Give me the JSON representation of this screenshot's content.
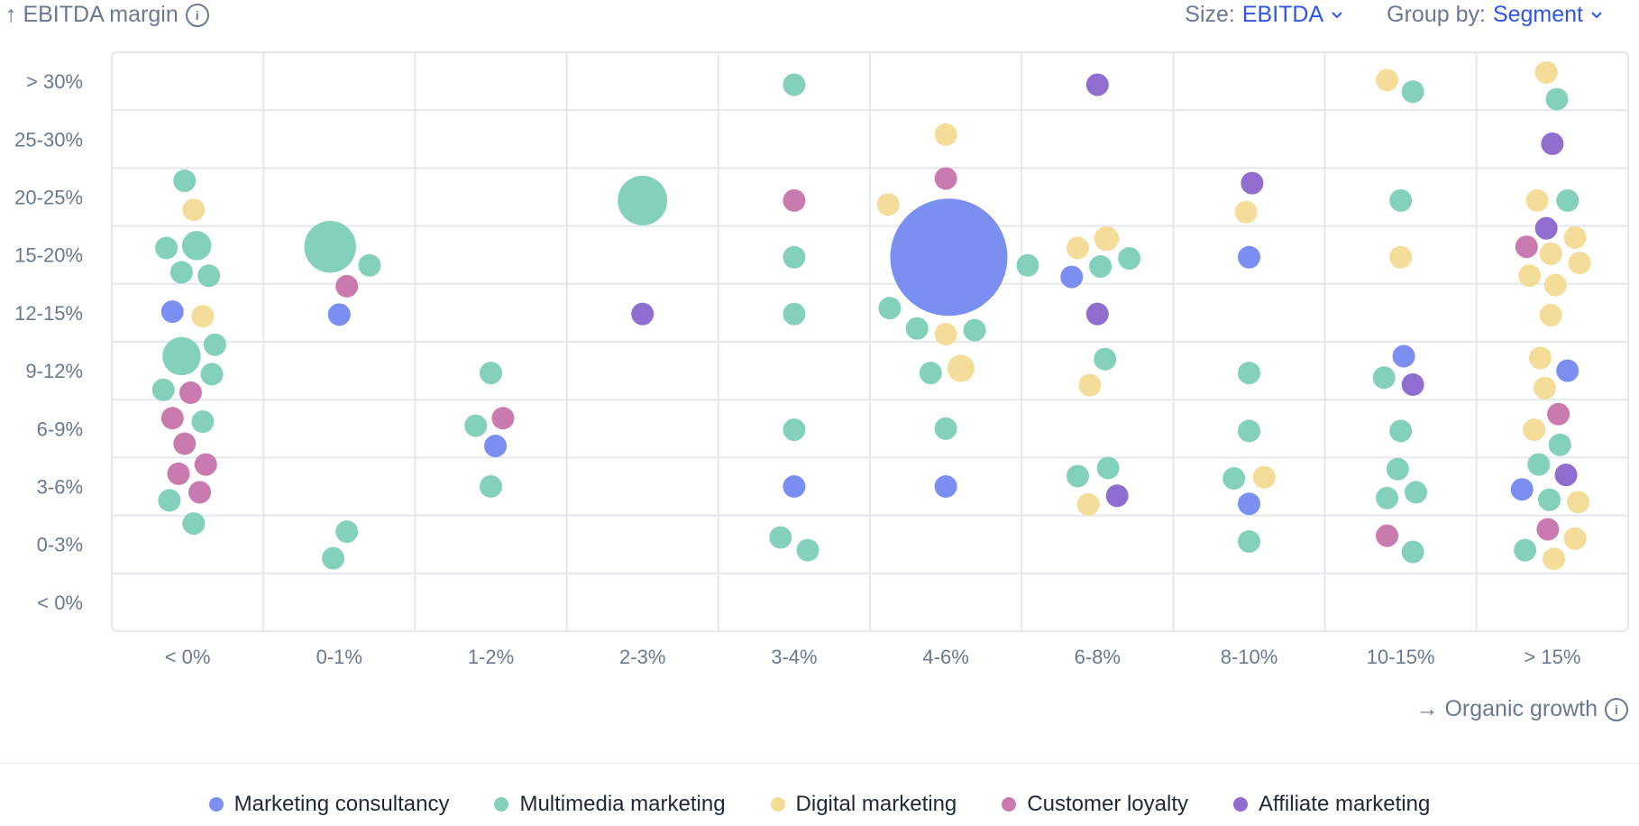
{
  "header": {
    "y_axis_title": "↑ EBITDA margin",
    "size_label": "Size:",
    "size_value": "EBITDA",
    "group_label": "Group by:",
    "group_value": "Segment"
  },
  "footer": {
    "x_axis_title": "→ Organic growth"
  },
  "colors": {
    "Marketing consultancy": "#7b8ff2",
    "Multimedia marketing": "#83d1ba",
    "Digital marketing": "#f4dc99",
    "Customer loyalty": "#c97bb0",
    "Affiliate marketing": "#8f6ed0",
    "accent": "#2f54eb"
  },
  "legend": [
    {
      "label": "Marketing consultancy",
      "color": "#7b8ff2"
    },
    {
      "label": "Multimedia marketing",
      "color": "#83d1ba"
    },
    {
      "label": "Digital marketing",
      "color": "#f4dc99"
    },
    {
      "label": "Customer loyalty",
      "color": "#c97bb0"
    },
    {
      "label": "Affiliate marketing",
      "color": "#8f6ed0"
    }
  ],
  "chart_data": {
    "type": "scatter",
    "title": "",
    "xlabel": "Organic growth",
    "ylabel": "EBITDA margin",
    "x_categories": [
      "< 0%",
      "0-1%",
      "1-2%",
      "2-3%",
      "3-4%",
      "4-6%",
      "6-8%",
      "8-10%",
      "10-15%",
      "> 15%"
    ],
    "y_categories": [
      "< 0%",
      "0-3%",
      "3-6%",
      "6-9%",
      "9-12%",
      "12-15%",
      "15-20%",
      "20-25%",
      "25-30%",
      "> 30%"
    ],
    "size_encodes": "EBITDA",
    "points": [
      {
        "s": "Multimedia marketing",
        "x": 0,
        "y": 7,
        "dx": -0.02,
        "dy": 0.28,
        "r": 1
      },
      {
        "s": "Digital marketing",
        "x": 0,
        "y": 7,
        "dx": 0.04,
        "dy": -0.22,
        "r": 1
      },
      {
        "s": "Multimedia marketing",
        "x": 0,
        "y": 6,
        "dx": -0.14,
        "dy": 0.12,
        "r": 1
      },
      {
        "s": "Multimedia marketing",
        "x": 0,
        "y": 6,
        "dx": 0.06,
        "dy": 0.16,
        "r": 1.3
      },
      {
        "s": "Multimedia marketing",
        "x": 0,
        "y": 6,
        "dx": -0.04,
        "dy": -0.3,
        "r": 1
      },
      {
        "s": "Multimedia marketing",
        "x": 0,
        "y": 6,
        "dx": 0.14,
        "dy": -0.36,
        "r": 1
      },
      {
        "s": "Marketing consultancy",
        "x": 0,
        "y": 5,
        "dx": -0.1,
        "dy": 0.02,
        "r": 1
      },
      {
        "s": "Digital marketing",
        "x": 0,
        "y": 5,
        "dx": 0.1,
        "dy": -0.06,
        "r": 1
      },
      {
        "s": "Multimedia marketing",
        "x": 0,
        "y": 5,
        "dx": 0.18,
        "dy": -0.55,
        "r": 1
      },
      {
        "s": "Multimedia marketing",
        "x": 0,
        "y": 4,
        "dx": -0.04,
        "dy": 0.25,
        "r": 1.7
      },
      {
        "s": "Multimedia marketing",
        "x": 0,
        "y": 4,
        "dx": 0.16,
        "dy": -0.06,
        "r": 1
      },
      {
        "s": "Multimedia marketing",
        "x": 0,
        "y": 4,
        "dx": -0.16,
        "dy": -0.33,
        "r": 1
      },
      {
        "s": "Customer loyalty",
        "x": 0,
        "y": 4,
        "dx": 0.02,
        "dy": -0.38,
        "r": 1
      },
      {
        "s": "Customer loyalty",
        "x": 0,
        "y": 3,
        "dx": -0.1,
        "dy": 0.18,
        "r": 1
      },
      {
        "s": "Multimedia marketing",
        "x": 0,
        "y": 3,
        "dx": 0.1,
        "dy": 0.12,
        "r": 1
      },
      {
        "s": "Customer loyalty",
        "x": 0,
        "y": 3,
        "dx": -0.02,
        "dy": -0.26,
        "r": 1
      },
      {
        "s": "Customer loyalty",
        "x": 0,
        "y": 2,
        "dx": 0.12,
        "dy": 0.38,
        "r": 1
      },
      {
        "s": "Customer loyalty",
        "x": 0,
        "y": 2,
        "dx": -0.06,
        "dy": 0.22,
        "r": 1
      },
      {
        "s": "Customer loyalty",
        "x": 0,
        "y": 2,
        "dx": 0.08,
        "dy": -0.1,
        "r": 1
      },
      {
        "s": "Multimedia marketing",
        "x": 0,
        "y": 2,
        "dx": -0.12,
        "dy": -0.24,
        "r": 1
      },
      {
        "s": "Multimedia marketing",
        "x": 0,
        "y": 1,
        "dx": 0.04,
        "dy": 0.36,
        "r": 1
      },
      {
        "s": "Multimedia marketing",
        "x": 1,
        "y": 6,
        "dx": -0.06,
        "dy": 0.14,
        "r": 2.3
      },
      {
        "s": "Multimedia marketing",
        "x": 1,
        "y": 6,
        "dx": 0.2,
        "dy": -0.18,
        "r": 1
      },
      {
        "s": "Customer loyalty",
        "x": 1,
        "y": 6,
        "dx": 0.05,
        "dy": -0.54,
        "r": 1
      },
      {
        "s": "Marketing consultancy",
        "x": 1,
        "y": 5,
        "dx": 0.0,
        "dy": -0.03,
        "r": 1
      },
      {
        "s": "Multimedia marketing",
        "x": 1,
        "y": 1,
        "dx": 0.05,
        "dy": 0.22,
        "r": 1
      },
      {
        "s": "Multimedia marketing",
        "x": 1,
        "y": 1,
        "dx": -0.04,
        "dy": -0.24,
        "r": 1
      },
      {
        "s": "Multimedia marketing",
        "x": 2,
        "y": 4,
        "dx": 0.0,
        "dy": -0.04,
        "r": 1
      },
      {
        "s": "Multimedia marketing",
        "x": 2,
        "y": 3,
        "dx": -0.1,
        "dy": 0.05,
        "r": 1
      },
      {
        "s": "Customer loyalty",
        "x": 2,
        "y": 3,
        "dx": 0.08,
        "dy": 0.18,
        "r": 1
      },
      {
        "s": "Marketing consultancy",
        "x": 2,
        "y": 3,
        "dx": 0.03,
        "dy": -0.3,
        "r": 1
      },
      {
        "s": "Multimedia marketing",
        "x": 2,
        "y": 2,
        "dx": 0.0,
        "dy": 0.0,
        "r": 1
      },
      {
        "s": "Multimedia marketing",
        "x": 3,
        "y": 7,
        "dx": 0.0,
        "dy": -0.06,
        "r": 2.2
      },
      {
        "s": "Affiliate marketing",
        "x": 3,
        "y": 5,
        "dx": 0.0,
        "dy": -0.02,
        "r": 1
      },
      {
        "s": "Multimedia marketing",
        "x": 4,
        "y": 9,
        "dx": 0.0,
        "dy": -0.06,
        "r": 1
      },
      {
        "s": "Customer loyalty",
        "x": 4,
        "y": 7,
        "dx": 0.0,
        "dy": -0.06,
        "r": 1
      },
      {
        "s": "Multimedia marketing",
        "x": 4,
        "y": 6,
        "dx": 0.0,
        "dy": -0.04,
        "r": 1
      },
      {
        "s": "Multimedia marketing",
        "x": 4,
        "y": 5,
        "dx": 0.0,
        "dy": -0.02,
        "r": 1
      },
      {
        "s": "Multimedia marketing",
        "x": 4,
        "y": 3,
        "dx": 0.0,
        "dy": -0.02,
        "r": 1
      },
      {
        "s": "Marketing consultancy",
        "x": 4,
        "y": 2,
        "dx": 0.0,
        "dy": 0.0,
        "r": 1
      },
      {
        "s": "Multimedia marketing",
        "x": 4,
        "y": 1,
        "dx": -0.09,
        "dy": 0.12,
        "r": 1
      },
      {
        "s": "Multimedia marketing",
        "x": 4,
        "y": 1,
        "dx": 0.09,
        "dy": -0.1,
        "r": 1
      },
      {
        "s": "Digital marketing",
        "x": 5,
        "y": 8,
        "dx": 0.0,
        "dy": 0.08,
        "r": 1
      },
      {
        "s": "Customer loyalty",
        "x": 5,
        "y": 7,
        "dx": 0.0,
        "dy": 0.32,
        "r": 1
      },
      {
        "s": "Digital marketing",
        "x": 5,
        "y": 7,
        "dx": -0.38,
        "dy": -0.13,
        "r": 1
      },
      {
        "s": "Marketing consultancy",
        "x": 5,
        "y": 6,
        "dx": 0.02,
        "dy": -0.04,
        "r": 5.2
      },
      {
        "s": "Multimedia marketing",
        "x": 5,
        "y": 6,
        "dx": 0.54,
        "dy": -0.18,
        "r": 1
      },
      {
        "s": "Multimedia marketing",
        "x": 5,
        "y": 5,
        "dx": -0.37,
        "dy": 0.08,
        "r": 1
      },
      {
        "s": "Multimedia marketing",
        "x": 5,
        "y": 5,
        "dx": -0.19,
        "dy": -0.27,
        "r": 1
      },
      {
        "s": "Digital marketing",
        "x": 5,
        "y": 5,
        "dx": 0.0,
        "dy": -0.37,
        "r": 1
      },
      {
        "s": "Multimedia marketing",
        "x": 5,
        "y": 5,
        "dx": 0.19,
        "dy": -0.3,
        "r": 1
      },
      {
        "s": "Digital marketing",
        "x": 5,
        "y": 4,
        "dx": 0.1,
        "dy": 0.04,
        "r": 1.2
      },
      {
        "s": "Multimedia marketing",
        "x": 5,
        "y": 4,
        "dx": -0.1,
        "dy": -0.04,
        "r": 1
      },
      {
        "s": "Multimedia marketing",
        "x": 5,
        "y": 3,
        "dx": 0.0,
        "dy": 0.0,
        "r": 1
      },
      {
        "s": "Marketing consultancy",
        "x": 5,
        "y": 2,
        "dx": 0.0,
        "dy": 0.0,
        "r": 1
      },
      {
        "s": "Affiliate marketing",
        "x": 6,
        "y": 9,
        "dx": 0.0,
        "dy": -0.06,
        "r": 1
      },
      {
        "s": "Digital marketing",
        "x": 6,
        "y": 6,
        "dx": -0.13,
        "dy": 0.12,
        "r": 1
      },
      {
        "s": "Digital marketing",
        "x": 6,
        "y": 6,
        "dx": 0.06,
        "dy": 0.28,
        "r": 1.1
      },
      {
        "s": "Multimedia marketing",
        "x": 6,
        "y": 6,
        "dx": 0.02,
        "dy": -0.2,
        "r": 1
      },
      {
        "s": "Multimedia marketing",
        "x": 6,
        "y": 6,
        "dx": 0.21,
        "dy": -0.06,
        "r": 1
      },
      {
        "s": "Marketing consultancy",
        "x": 6,
        "y": 6,
        "dx": -0.17,
        "dy": -0.38,
        "r": 1
      },
      {
        "s": "Affiliate marketing",
        "x": 6,
        "y": 5,
        "dx": 0.0,
        "dy": -0.02,
        "r": 1
      },
      {
        "s": "Multimedia marketing",
        "x": 6,
        "y": 4,
        "dx": 0.05,
        "dy": 0.2,
        "r": 1
      },
      {
        "s": "Digital marketing",
        "x": 6,
        "y": 4,
        "dx": -0.05,
        "dy": -0.25,
        "r": 1
      },
      {
        "s": "Multimedia marketing",
        "x": 6,
        "y": 2,
        "dx": 0.07,
        "dy": 0.32,
        "r": 1
      },
      {
        "s": "Multimedia marketing",
        "x": 6,
        "y": 2,
        "dx": -0.13,
        "dy": 0.18,
        "r": 1
      },
      {
        "s": "Affiliate marketing",
        "x": 6,
        "y": 2,
        "dx": 0.13,
        "dy": -0.16,
        "r": 1
      },
      {
        "s": "Digital marketing",
        "x": 6,
        "y": 2,
        "dx": -0.06,
        "dy": -0.31,
        "r": 1
      },
      {
        "s": "Affiliate marketing",
        "x": 7,
        "y": 7,
        "dx": 0.02,
        "dy": 0.24,
        "r": 1
      },
      {
        "s": "Digital marketing",
        "x": 7,
        "y": 7,
        "dx": -0.02,
        "dy": -0.26,
        "r": 1
      },
      {
        "s": "Marketing consultancy",
        "x": 7,
        "y": 6,
        "dx": 0.0,
        "dy": -0.04,
        "r": 1
      },
      {
        "s": "Multimedia marketing",
        "x": 7,
        "y": 4,
        "dx": 0.0,
        "dy": -0.04,
        "r": 1
      },
      {
        "s": "Multimedia marketing",
        "x": 7,
        "y": 3,
        "dx": 0.0,
        "dy": -0.04,
        "r": 1
      },
      {
        "s": "Multimedia marketing",
        "x": 7,
        "y": 2,
        "dx": -0.1,
        "dy": 0.14,
        "r": 1
      },
      {
        "s": "Digital marketing",
        "x": 7,
        "y": 2,
        "dx": 0.1,
        "dy": 0.16,
        "r": 1
      },
      {
        "s": "Marketing consultancy",
        "x": 7,
        "y": 2,
        "dx": 0.0,
        "dy": -0.3,
        "r": 1
      },
      {
        "s": "Multimedia marketing",
        "x": 7,
        "y": 1,
        "dx": 0.0,
        "dy": 0.05,
        "r": 1
      },
      {
        "s": "Digital marketing",
        "x": 8,
        "y": 9,
        "dx": -0.09,
        "dy": 0.02,
        "r": 1
      },
      {
        "s": "Multimedia marketing",
        "x": 8,
        "y": 9,
        "dx": 0.08,
        "dy": -0.18,
        "r": 1
      },
      {
        "s": "Multimedia marketing",
        "x": 8,
        "y": 7,
        "dx": 0.0,
        "dy": -0.06,
        "r": 1
      },
      {
        "s": "Digital marketing",
        "x": 8,
        "y": 6,
        "dx": 0.0,
        "dy": -0.04,
        "r": 1
      },
      {
        "s": "Marketing consultancy",
        "x": 8,
        "y": 4,
        "dx": 0.02,
        "dy": 0.25,
        "r": 1
      },
      {
        "s": "Multimedia marketing",
        "x": 8,
        "y": 4,
        "dx": -0.11,
        "dy": -0.12,
        "r": 1
      },
      {
        "s": "Affiliate marketing",
        "x": 8,
        "y": 4,
        "dx": 0.08,
        "dy": -0.24,
        "r": 1
      },
      {
        "s": "Multimedia marketing",
        "x": 8,
        "y": 3,
        "dx": 0.0,
        "dy": -0.04,
        "r": 1
      },
      {
        "s": "Multimedia marketing",
        "x": 8,
        "y": 2,
        "dx": -0.02,
        "dy": 0.3,
        "r": 1
      },
      {
        "s": "Multimedia marketing",
        "x": 8,
        "y": 2,
        "dx": -0.09,
        "dy": -0.2,
        "r": 1
      },
      {
        "s": "Multimedia marketing",
        "x": 8,
        "y": 2,
        "dx": 0.1,
        "dy": -0.1,
        "r": 1
      },
      {
        "s": "Customer loyalty",
        "x": 8,
        "y": 1,
        "dx": -0.09,
        "dy": 0.15,
        "r": 1
      },
      {
        "s": "Multimedia marketing",
        "x": 8,
        "y": 1,
        "dx": 0.08,
        "dy": -0.13,
        "r": 1
      },
      {
        "s": "Digital marketing",
        "x": 9,
        "y": 9,
        "dx": -0.04,
        "dy": 0.15,
        "r": 1
      },
      {
        "s": "Multimedia marketing",
        "x": 9,
        "y": 9,
        "dx": 0.03,
        "dy": -0.31,
        "r": 1
      },
      {
        "s": "Affiliate marketing",
        "x": 9,
        "y": 8,
        "dx": 0.0,
        "dy": -0.08,
        "r": 1
      },
      {
        "s": "Digital marketing",
        "x": 9,
        "y": 7,
        "dx": -0.1,
        "dy": -0.06,
        "r": 1
      },
      {
        "s": "Multimedia marketing",
        "x": 9,
        "y": 7,
        "dx": 0.1,
        "dy": -0.06,
        "r": 1
      },
      {
        "s": "Affiliate marketing",
        "x": 9,
        "y": 6,
        "dx": -0.04,
        "dy": 0.46,
        "r": 1
      },
      {
        "s": "Digital marketing",
        "x": 9,
        "y": 6,
        "dx": 0.15,
        "dy": 0.3,
        "r": 1
      },
      {
        "s": "Customer loyalty",
        "x": 9,
        "y": 6,
        "dx": -0.17,
        "dy": 0.14,
        "r": 1
      },
      {
        "s": "Digital marketing",
        "x": 9,
        "y": 6,
        "dx": -0.01,
        "dy": 0.02,
        "r": 1
      },
      {
        "s": "Digital marketing",
        "x": 9,
        "y": 6,
        "dx": 0.18,
        "dy": -0.14,
        "r": 1
      },
      {
        "s": "Digital marketing",
        "x": 9,
        "y": 6,
        "dx": -0.15,
        "dy": -0.36,
        "r": 1
      },
      {
        "s": "Digital marketing",
        "x": 9,
        "y": 6,
        "dx": 0.02,
        "dy": -0.52,
        "r": 1
      },
      {
        "s": "Digital marketing",
        "x": 9,
        "y": 5,
        "dx": -0.01,
        "dy": -0.04,
        "r": 1
      },
      {
        "s": "Digital marketing",
        "x": 9,
        "y": 4,
        "dx": -0.08,
        "dy": 0.22,
        "r": 1
      },
      {
        "s": "Marketing consultancy",
        "x": 9,
        "y": 4,
        "dx": 0.1,
        "dy": 0.0,
        "r": 1
      },
      {
        "s": "Digital marketing",
        "x": 9,
        "y": 4,
        "dx": -0.05,
        "dy": -0.3,
        "r": 1
      },
      {
        "s": "Customer loyalty",
        "x": 9,
        "y": 3,
        "dx": 0.04,
        "dy": 0.25,
        "r": 1
      },
      {
        "s": "Digital marketing",
        "x": 9,
        "y": 3,
        "dx": -0.12,
        "dy": -0.02,
        "r": 1
      },
      {
        "s": "Multimedia marketing",
        "x": 9,
        "y": 3,
        "dx": 0.05,
        "dy": -0.28,
        "r": 1
      },
      {
        "s": "Multimedia marketing",
        "x": 9,
        "y": 2,
        "dx": -0.09,
        "dy": 0.38,
        "r": 1
      },
      {
        "s": "Affiliate marketing",
        "x": 9,
        "y": 2,
        "dx": 0.09,
        "dy": 0.2,
        "r": 1
      },
      {
        "s": "Marketing consultancy",
        "x": 9,
        "y": 2,
        "dx": -0.2,
        "dy": -0.05,
        "r": 1
      },
      {
        "s": "Multimedia marketing",
        "x": 9,
        "y": 2,
        "dx": -0.02,
        "dy": -0.23,
        "r": 1
      },
      {
        "s": "Digital marketing",
        "x": 9,
        "y": 2,
        "dx": 0.17,
        "dy": -0.27,
        "r": 1
      },
      {
        "s": "Customer loyalty",
        "x": 9,
        "y": 1,
        "dx": -0.03,
        "dy": 0.26,
        "r": 1
      },
      {
        "s": "Digital marketing",
        "x": 9,
        "y": 1,
        "dx": 0.15,
        "dy": 0.1,
        "r": 1
      },
      {
        "s": "Multimedia marketing",
        "x": 9,
        "y": 1,
        "dx": -0.18,
        "dy": -0.1,
        "r": 1
      },
      {
        "s": "Digital marketing",
        "x": 9,
        "y": 1,
        "dx": 0.01,
        "dy": -0.25,
        "r": 1
      }
    ]
  }
}
